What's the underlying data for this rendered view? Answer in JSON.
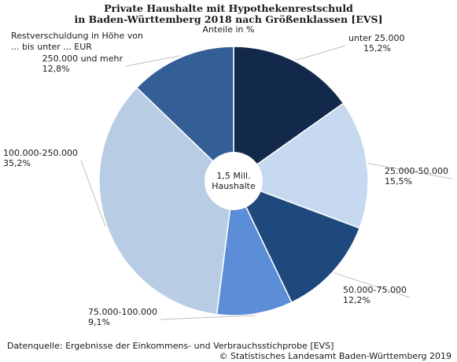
{
  "chart_data": {
    "type": "pie",
    "title": "Private Haushalte mit Hypothekenrestschuld",
    "title_line2": "in Baden-Württemberg 2018 nach Größenklassen [EVS]",
    "subtitle": "Anteile in %",
    "legend_note_line1": "Restverschuldung in Höhe von",
    "legend_note_line2": "... bis unter ... EUR",
    "center_label_line1": "1,5 Mill.",
    "center_label_line2": "Haushalte",
    "slices": [
      {
        "label": "unter 25.000",
        "value": 15.2,
        "value_text": "15,2%",
        "color": "#13294b"
      },
      {
        "label": "25.000-50.000",
        "value": 15.5,
        "value_text": "15,5%",
        "color": "#c6d9f0"
      },
      {
        "label": "50.000-75.000",
        "value": 12.2,
        "value_text": "12,2%",
        "color": "#1f497d"
      },
      {
        "label": "75.000-100.000",
        "value": 9.1,
        "value_text": "9,1%",
        "color": "#5b8ed6"
      },
      {
        "label": "100.000-250.000",
        "value": 35.2,
        "value_text": "35,2%",
        "color": "#b8cce4"
      },
      {
        "label": "250.000 und mehr",
        "value": 12.8,
        "value_text": "12,8%",
        "color": "#335f96"
      }
    ]
  },
  "footer": {
    "source": "Datenquelle: Ergebnisse der Einkommens- und Verbrauchsstichprobe [EVS]",
    "copyright": "© Statistisches Landesamt Baden-Württemberg 2019"
  }
}
